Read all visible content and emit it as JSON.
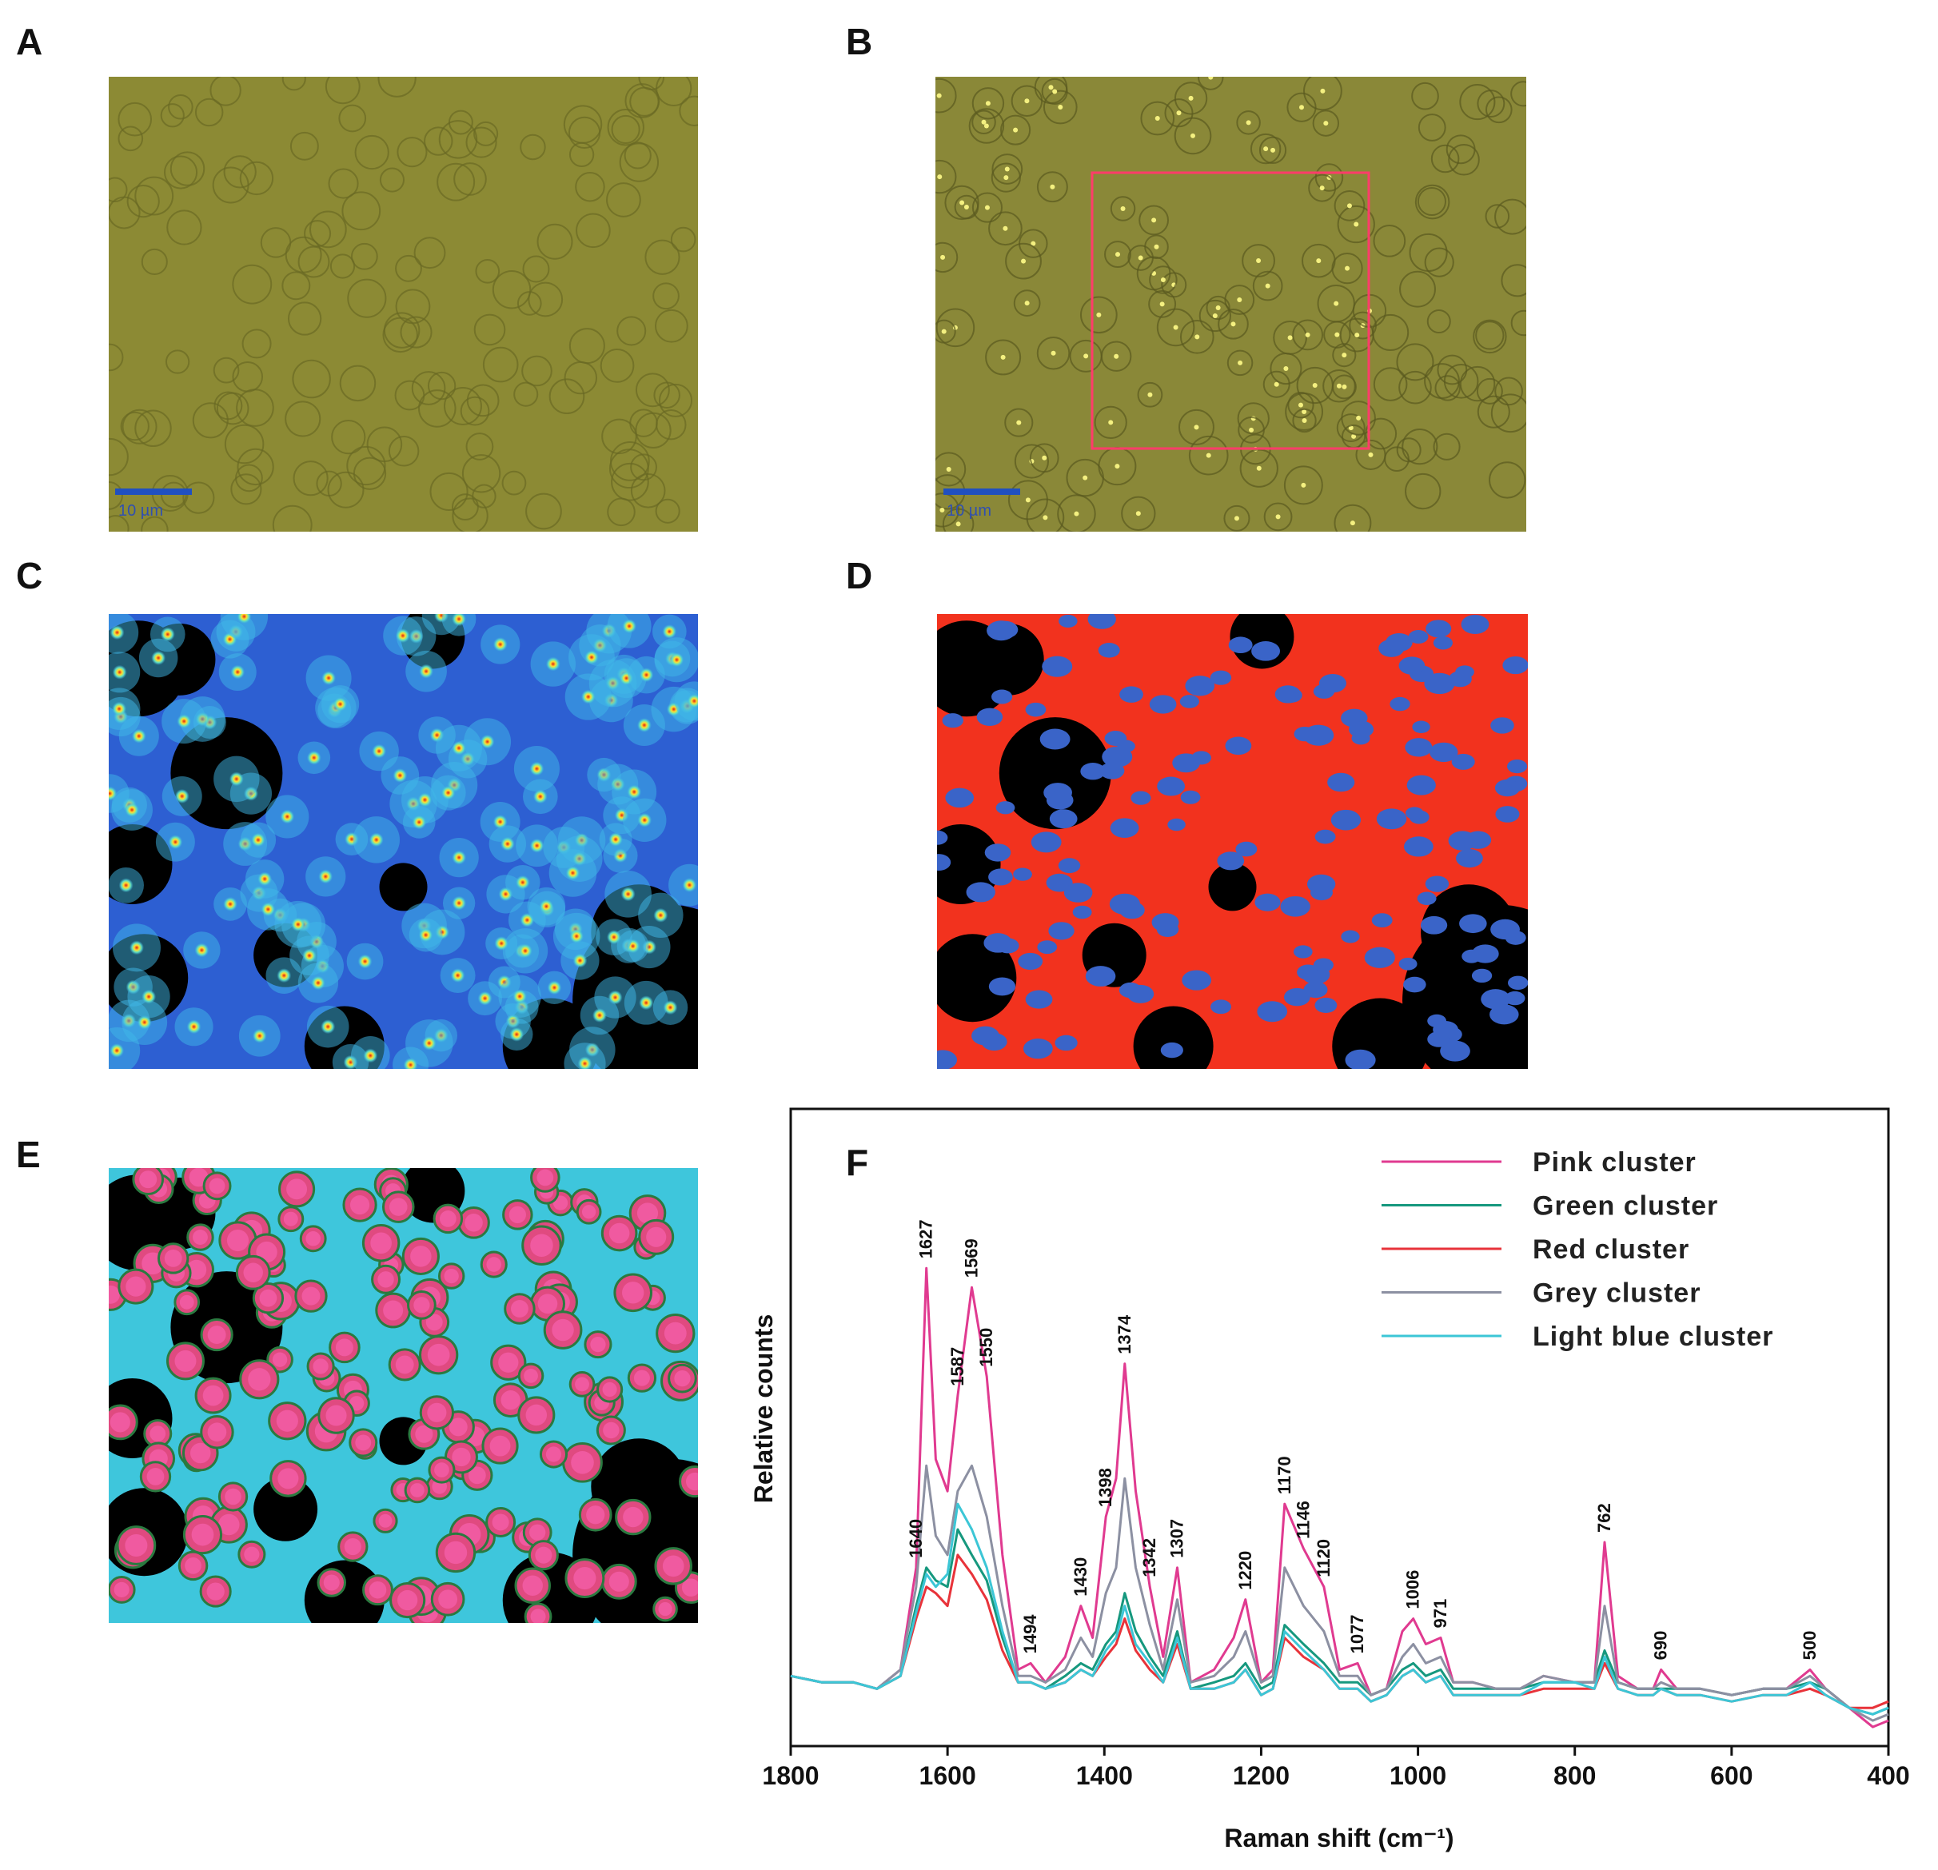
{
  "panel_labels": [
    "A",
    "B",
    "C",
    "D",
    "E",
    "F"
  ],
  "scale_bar_labels": [
    "10 µm",
    "10 µm"
  ],
  "chart_data": {
    "type": "line",
    "xlabel": "Raman shift (cm⁻¹)",
    "ylabel": "Relative counts",
    "x": [
      1800,
      1760,
      1720,
      1690,
      1660,
      1640,
      1627,
      1615,
      1600,
      1587,
      1569,
      1550,
      1530,
      1510,
      1494,
      1475,
      1450,
      1430,
      1415,
      1398,
      1385,
      1374,
      1360,
      1342,
      1325,
      1307,
      1290,
      1260,
      1235,
      1220,
      1200,
      1185,
      1170,
      1146,
      1120,
      1100,
      1077,
      1060,
      1040,
      1020,
      1006,
      990,
      971,
      955,
      930,
      900,
      870,
      840,
      800,
      775,
      762,
      745,
      720,
      700,
      690,
      670,
      640,
      600,
      560,
      530,
      500,
      480,
      450,
      420,
      400
    ],
    "series": [
      {
        "name": "Pink cluster",
        "color": "#e03a90",
        "values": [
          11,
          10,
          10,
          9,
          12,
          28,
          75,
          45,
          40,
          55,
          72,
          58,
          30,
          12,
          13,
          10,
          14,
          22,
          17,
          36,
          42,
          60,
          40,
          25,
          14,
          28,
          10,
          12,
          17,
          23,
          10,
          12,
          38,
          31,
          25,
          12,
          13,
          8,
          9,
          18,
          20,
          16,
          17,
          10,
          10,
          9,
          9,
          11,
          10,
          10,
          32,
          11,
          9,
          9,
          12,
          9,
          9,
          8,
          9,
          9,
          12,
          9,
          6,
          3,
          4
        ]
      },
      {
        "name": "Green cluster",
        "color": "#16987e",
        "values": [
          11,
          10,
          10,
          9,
          11,
          22,
          28,
          26,
          25,
          34,
          30,
          26,
          17,
          10,
          10,
          9,
          11,
          13,
          12,
          16,
          18,
          24,
          18,
          14,
          11,
          18,
          9,
          10,
          11,
          13,
          9,
          10,
          19,
          16,
          13,
          10,
          10,
          8,
          9,
          12,
          13,
          11,
          12,
          9,
          9,
          9,
          9,
          10,
          10,
          10,
          15,
          10,
          9,
          9,
          9,
          9,
          9,
          8,
          9,
          9,
          10,
          9,
          6,
          5,
          6
        ]
      },
      {
        "name": "Red cluster",
        "color": "#e8333a",
        "values": [
          11,
          10,
          10,
          9,
          11,
          20,
          25,
          24,
          22,
          30,
          27,
          23,
          15,
          10,
          10,
          9,
          10,
          12,
          11,
          14,
          16,
          20,
          15,
          12,
          10,
          16,
          9,
          9,
          10,
          12,
          8,
          9,
          17,
          14,
          12,
          9,
          9,
          7,
          8,
          11,
          12,
          10,
          11,
          8,
          8,
          8,
          8,
          9,
          9,
          9,
          13,
          9,
          8,
          8,
          9,
          8,
          8,
          7,
          8,
          8,
          9,
          8,
          6,
          6,
          7
        ]
      },
      {
        "name": "Grey cluster",
        "color": "#8c90a2",
        "values": [
          11,
          10,
          10,
          9,
          12,
          25,
          44,
          33,
          30,
          40,
          44,
          36,
          22,
          11,
          11,
          10,
          12,
          17,
          14,
          24,
          28,
          42,
          28,
          19,
          12,
          23,
          10,
          11,
          14,
          18,
          10,
          11,
          28,
          22,
          18,
          11,
          11,
          8,
          9,
          14,
          16,
          13,
          14,
          10,
          10,
          9,
          9,
          11,
          10,
          10,
          22,
          10,
          9,
          9,
          10,
          9,
          9,
          8,
          9,
          9,
          11,
          9,
          6,
          4,
          5
        ]
      },
      {
        "name": "Light blue cluster",
        "color": "#3cc6d6",
        "values": [
          11,
          10,
          10,
          9,
          11,
          21,
          27,
          25,
          27,
          38,
          34,
          28,
          18,
          10,
          10,
          9,
          10,
          12,
          11,
          15,
          17,
          22,
          16,
          13,
          10,
          17,
          9,
          9,
          10,
          12,
          8,
          9,
          18,
          15,
          12,
          9,
          9,
          7,
          8,
          11,
          12,
          10,
          11,
          8,
          8,
          8,
          8,
          10,
          10,
          9,
          14,
          9,
          8,
          8,
          9,
          8,
          8,
          7,
          8,
          8,
          10,
          8,
          6,
          5,
          6
        ]
      }
    ],
    "peak_labels": [
      1640,
      1627,
      1587,
      1569,
      1550,
      1494,
      1430,
      1398,
      1374,
      1342,
      1307,
      1220,
      1170,
      1146,
      1120,
      1077,
      1006,
      971,
      762,
      690,
      500
    ],
    "xlim": [
      1800,
      400
    ],
    "xticks": [
      1800,
      1600,
      1400,
      1200,
      1000,
      800,
      600,
      400
    ],
    "ylim": [
      0,
      100
    ],
    "grid": false,
    "legend": "upper right"
  }
}
